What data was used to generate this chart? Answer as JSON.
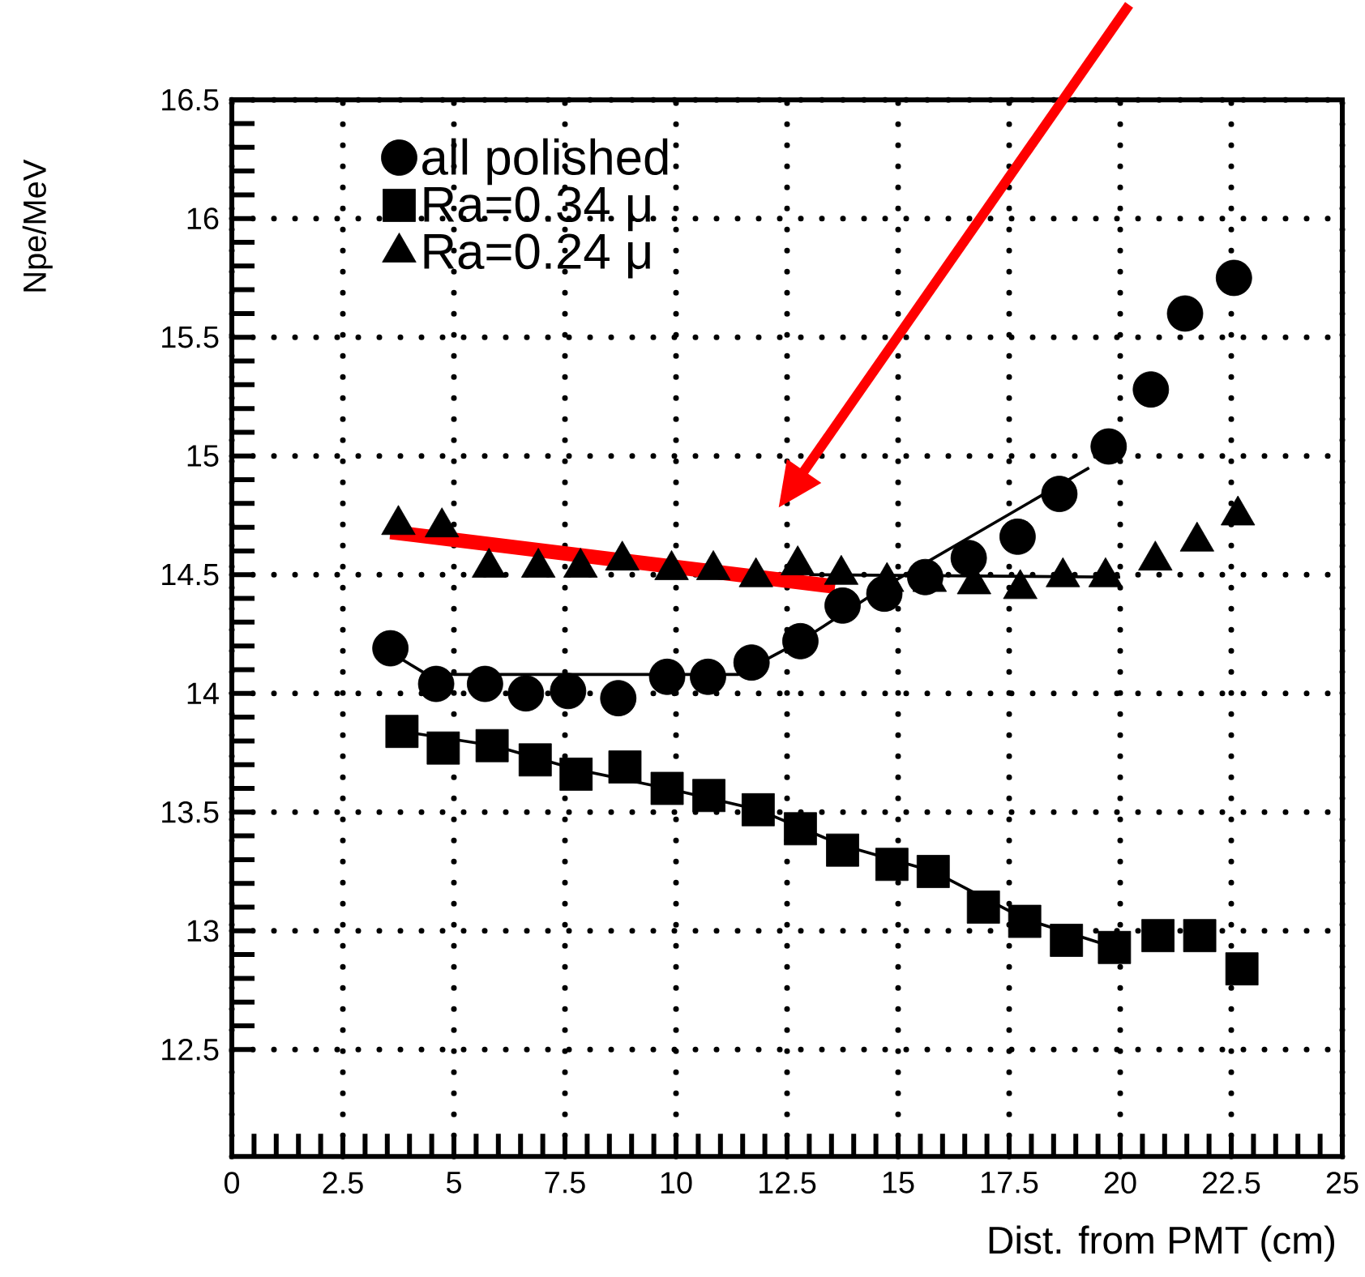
{
  "chart_data": {
    "type": "scatter",
    "xlabel": "Dist. from PMT (cm)",
    "ylabel": "Npe/MeV",
    "xlim": [
      0,
      25
    ],
    "ylim": [
      12.05,
      16.5
    ],
    "xticks": [
      0,
      2.5,
      5,
      7.5,
      10,
      12.5,
      15,
      17.5,
      20,
      22.5,
      25
    ],
    "yticks": [
      12.5,
      13,
      13.5,
      14,
      14.5,
      15,
      15.5,
      16,
      16.5
    ],
    "grid": true,
    "legend": "top left",
    "series": [
      {
        "name": "all polished",
        "marker": "circle",
        "color": "#000000",
        "x": [
          3.57,
          4.6,
          5.7,
          6.62,
          7.57,
          8.7,
          9.8,
          10.72,
          11.7,
          12.8,
          13.75,
          14.69,
          15.61,
          16.59,
          17.69,
          18.63,
          19.74,
          20.69,
          21.46,
          22.56
        ],
        "values": [
          14.19,
          14.04,
          14.04,
          14.0,
          14.01,
          13.98,
          14.07,
          14.07,
          14.13,
          14.22,
          14.37,
          14.42,
          14.49,
          14.57,
          14.66,
          14.84,
          15.04,
          15.28,
          15.6,
          15.75
        ]
      },
      {
        "name": "Ra=0.34 μ",
        "marker": "square",
        "color": "#000000",
        "x": [
          3.83,
          4.76,
          5.86,
          6.83,
          7.75,
          8.85,
          9.8,
          10.74,
          11.85,
          12.8,
          13.75,
          14.86,
          15.79,
          16.92,
          17.85,
          18.79,
          19.87,
          20.85,
          21.79,
          22.74
        ],
        "values": [
          13.84,
          13.77,
          13.78,
          13.72,
          13.66,
          13.69,
          13.6,
          13.57,
          13.51,
          13.43,
          13.34,
          13.28,
          13.25,
          13.1,
          13.04,
          12.96,
          12.93,
          12.98,
          12.98,
          12.84
        ]
      },
      {
        "name": "Ra=0.24 μ",
        "marker": "triangle",
        "color": "#000000",
        "x": [
          3.75,
          4.73,
          5.79,
          6.9,
          7.85,
          8.79,
          9.9,
          10.84,
          11.8,
          12.74,
          13.72,
          14.75,
          15.71,
          16.71,
          17.75,
          18.71,
          19.67,
          20.79,
          21.73,
          22.65
        ],
        "values": [
          14.71,
          14.7,
          14.53,
          14.53,
          14.53,
          14.56,
          14.52,
          14.52,
          14.49,
          14.54,
          14.5,
          14.47,
          14.47,
          14.46,
          14.44,
          14.49,
          14.49,
          14.56,
          14.64,
          14.75
        ]
      },
      {
        "type": "line",
        "marker": "none",
        "line_style": "solid",
        "color": "#000000",
        "x": [
          3.6,
          4.3,
          5,
          11.4,
          12.8,
          14.7,
          19.3
        ],
        "values": [
          14.17,
          14.09,
          14.08,
          14.08,
          14.22,
          14.45,
          14.95
        ]
      },
      {
        "type": "line",
        "marker": "none",
        "line_style": "solid",
        "color": "#000000",
        "x": [
          3.83,
          5.9,
          7.75,
          9.8,
          11.85,
          13.75,
          15.8,
          17.85,
          19.87
        ],
        "values": [
          13.84,
          13.78,
          13.68,
          13.6,
          13.51,
          13.36,
          13.25,
          13.05,
          12.93
        ]
      },
      {
        "type": "line",
        "marker": "none",
        "line_style": "solid",
        "color": "#000000",
        "x": [
          13.0,
          20.0
        ],
        "values": [
          14.5,
          14.49
        ]
      },
      {
        "type": "line",
        "marker": "none",
        "line_style": "solid",
        "color": "#ff0000",
        "x": [
          3.57,
          13.58
        ],
        "values": [
          14.68,
          14.45
        ]
      }
    ]
  }
}
